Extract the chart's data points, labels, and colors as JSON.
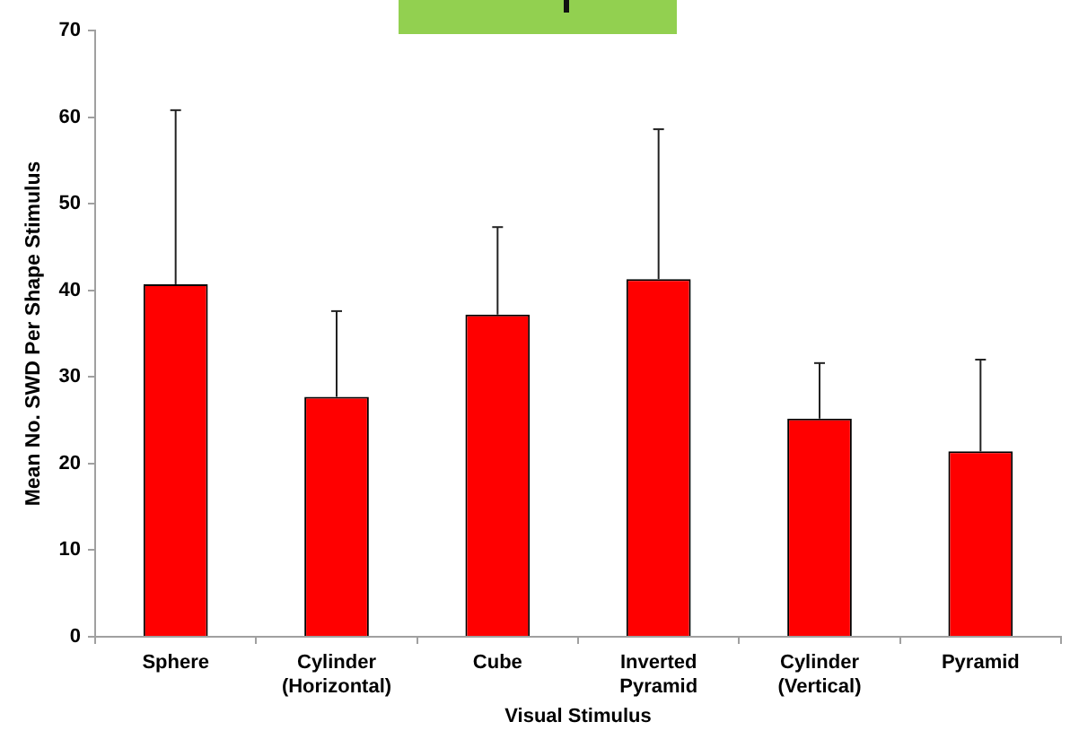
{
  "chart_data": {
    "type": "bar",
    "xlabel": "Visual Stimulus",
    "ylabel": "Mean No. SWD Per Shape Stimulus",
    "categories": [
      "Sphere",
      "Cylinder (Horizontal)",
      "Cube",
      "Inverted Pyramid",
      "Cylinder (Vertical)",
      "Pyramid"
    ],
    "values": [
      40.7,
      27.7,
      37.2,
      41.3,
      25.2,
      21.4
    ],
    "color": "#ff0000",
    "errors": [
      [
        40.7,
        60.8
      ],
      [
        27.7,
        37.6
      ],
      [
        37.2,
        47.3
      ],
      [
        41.3,
        58.6
      ],
      [
        25.2,
        31.6
      ],
      [
        21.4,
        32.0
      ]
    ],
    "ylim": [
      0,
      70
    ],
    "yticks": [
      0,
      10,
      20,
      30,
      40,
      50,
      60,
      70
    ],
    "grid": false,
    "legend": false
  }
}
